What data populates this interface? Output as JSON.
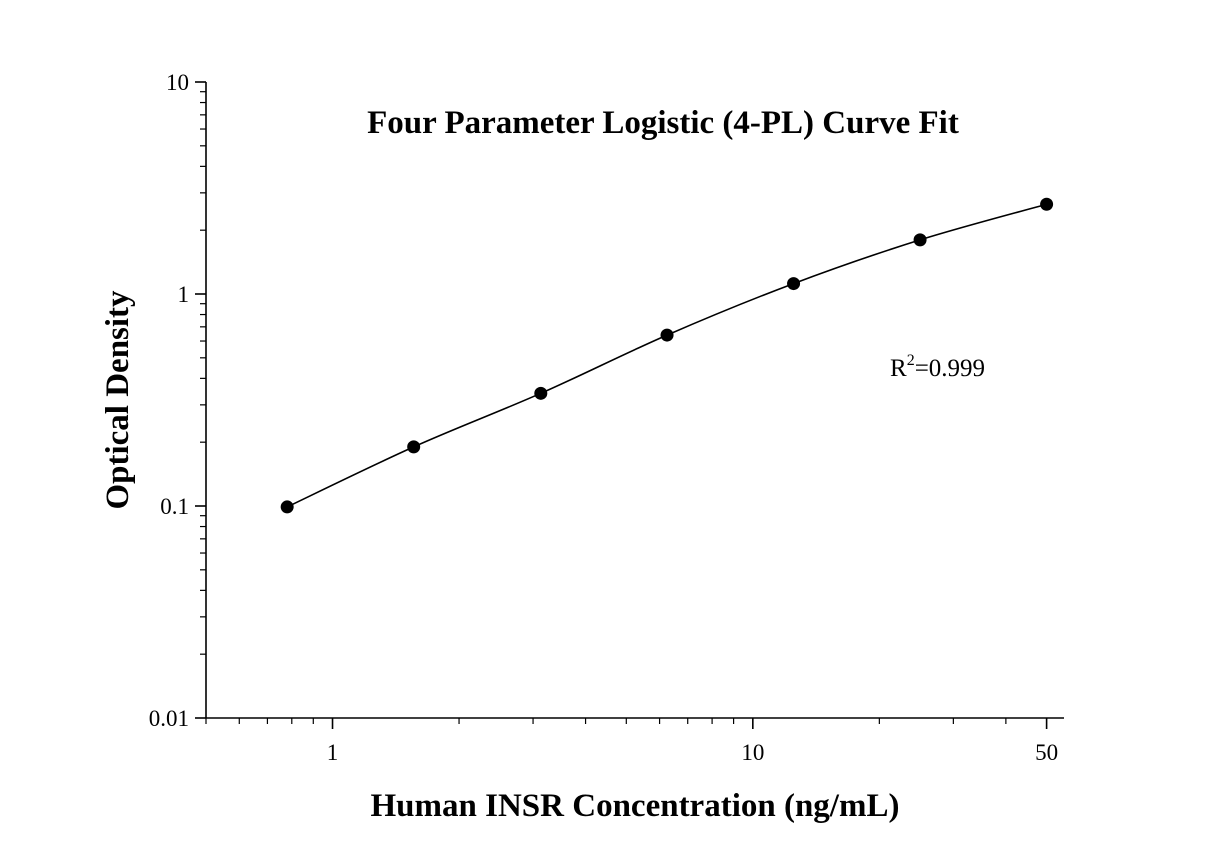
{
  "chart_data": {
    "type": "scatter",
    "title": "Four Parameter Logistic (4-PL) Curve Fit",
    "xlabel": "Human INSR Concentration (ng/mL)",
    "ylabel": "Optical Density",
    "x_scale": "log",
    "y_scale": "log",
    "xlim": [
      0.5,
      55
    ],
    "ylim": [
      0.01,
      10
    ],
    "x_ticks": [
      {
        "value": 1,
        "label": "1"
      },
      {
        "value": 10,
        "label": "10"
      },
      {
        "value": 50,
        "label": "50"
      }
    ],
    "y_ticks": [
      {
        "value": 0.01,
        "label": "0.01"
      },
      {
        "value": 0.1,
        "label": "0.1"
      },
      {
        "value": 1,
        "label": "1"
      },
      {
        "value": 10,
        "label": "10"
      }
    ],
    "series": [
      {
        "x": [
          0.78,
          1.56,
          3.13,
          6.25,
          12.5,
          25,
          50
        ],
        "y": [
          0.099,
          0.19,
          0.34,
          0.64,
          1.12,
          1.8,
          2.65
        ]
      }
    ],
    "annotation": {
      "text": "R",
      "sup": "2",
      "tail": "=0.999"
    },
    "grid": false,
    "legend": false,
    "colors": {
      "points": "#000000",
      "curve": "#000000",
      "axes": "#000000"
    }
  }
}
